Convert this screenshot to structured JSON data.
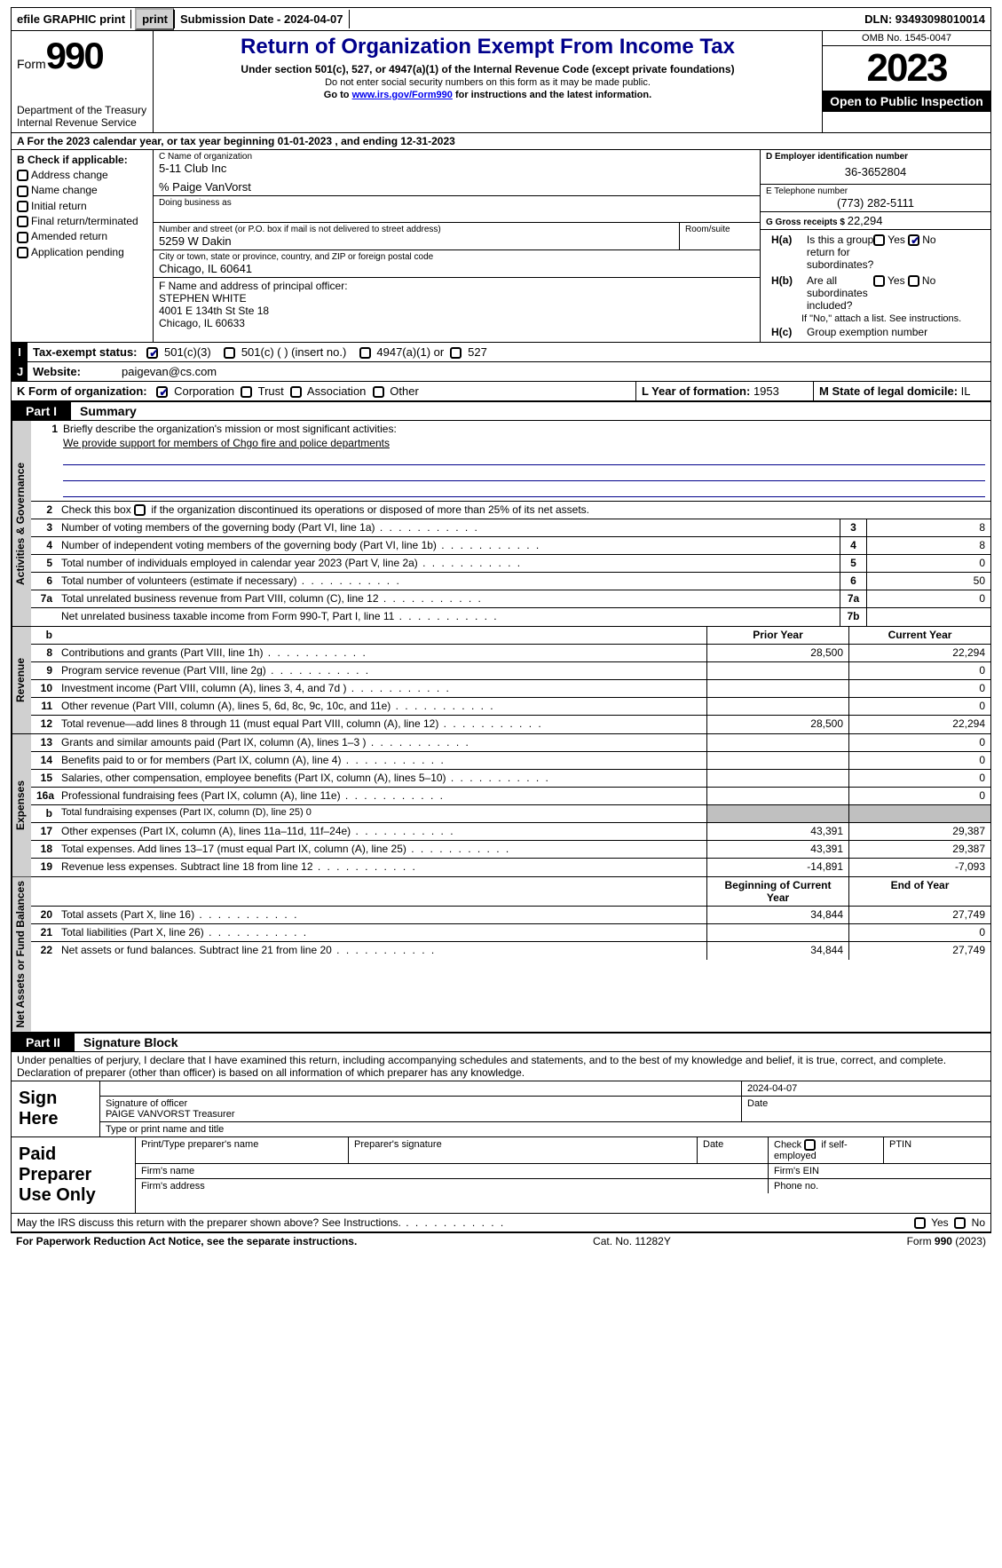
{
  "topbar": {
    "efile_label": "efile GRAPHIC print",
    "submission_label": "Submission Date - 2024-04-07",
    "dln_label": "DLN: 93493098010014"
  },
  "header": {
    "form_prefix": "Form",
    "form_number": "990",
    "dept": "Department of the Treasury Internal Revenue Service",
    "title": "Return of Organization Exempt From Income Tax",
    "sub1": "Under section 501(c), 527, or 4947(a)(1) of the Internal Revenue Code (except private foundations)",
    "sub2": "Do not enter social security numbers on this form as it may be made public.",
    "sub3_prefix": "Go to ",
    "sub3_link": "www.irs.gov/Form990",
    "sub3_suffix": " for instructions and the latest information.",
    "omb": "OMB No. 1545-0047",
    "year": "2023",
    "open_inspection": "Open to Public Inspection"
  },
  "period": {
    "label": "A For the 2023 calendar year, or tax year beginning ",
    "begin": "01-01-2023",
    "mid": " , and ending ",
    "end": "12-31-2023"
  },
  "box_b": {
    "title": "B Check if applicable:",
    "opts": [
      "Address change",
      "Name change",
      "Initial return",
      "Final return/terminated",
      "Amended return",
      "Application pending"
    ]
  },
  "box_c": {
    "name_label": "C Name of organization",
    "name": "5-11 Club Inc",
    "care_of": "% Paige VanVorst",
    "dba_label": "Doing business as",
    "street_label": "Number and street (or P.O. box if mail is not delivered to street address)",
    "street": "5259 W Dakin",
    "room_label": "Room/suite",
    "city_label": "City or town, state or province, country, and ZIP or foreign postal code",
    "city": "Chicago, IL  60641"
  },
  "box_d": {
    "label": "D Employer identification number",
    "value": "36-3652804"
  },
  "box_e": {
    "label": "E Telephone number",
    "value": "(773) 282-5111"
  },
  "box_g": {
    "label": "G Gross receipts $ ",
    "value": "22,294"
  },
  "box_f": {
    "label": "F  Name and address of principal officer:",
    "name": "STEPHEN WHITE",
    "addr1": "4001 E 134th St Ste 18",
    "addr2": "Chicago, IL  60633"
  },
  "box_h": {
    "a_label": "Is this a group return for subordinates?",
    "a_prefix": "H(a)",
    "b_label": "Are all subordinates included?",
    "b_prefix": "H(b)",
    "note": "If \"No,\" attach a list. See instructions.",
    "c_prefix": "H(c)",
    "c_label": "Group exemption number",
    "yes": "Yes",
    "no": "No"
  },
  "box_i": {
    "label": "Tax-exempt status:",
    "opt1": "501(c)(3)",
    "opt2": "501(c) (  ) (insert no.)",
    "opt3": "4947(a)(1) or",
    "opt4": "527"
  },
  "box_j": {
    "label": "Website:",
    "value": "paigevan@cs.com"
  },
  "box_k": {
    "label": "K Form of organization:",
    "opts": [
      "Corporation",
      "Trust",
      "Association",
      "Other"
    ]
  },
  "box_l": {
    "label": "L Year of formation: ",
    "value": "1953"
  },
  "box_m": {
    "label": "M State of legal domicile: ",
    "value": "IL"
  },
  "part1": {
    "tab": "Part I",
    "title": "Summary",
    "q1": "Briefly describe the organization's mission or most significant activities:",
    "mission": "We provide support for members of Chgo fire and police departments",
    "q2": "Check this box      if the organization discontinued its operations or disposed of more than 25% of its net assets.",
    "sections": {
      "gov": "Activities & Governance",
      "rev": "Revenue",
      "exp": "Expenses",
      "net": "Net Assets or Fund Balances"
    },
    "prior_hdr": "Prior Year",
    "curr_hdr": "Current Year",
    "begin_hdr": "Beginning of Current Year",
    "end_hdr": "End of Year",
    "rows_gov": [
      {
        "n": "3",
        "d": "Number of voting members of the governing body (Part VI, line 1a)",
        "box": "3",
        "v": "8"
      },
      {
        "n": "4",
        "d": "Number of independent voting members of the governing body (Part VI, line 1b)",
        "box": "4",
        "v": "8"
      },
      {
        "n": "5",
        "d": "Total number of individuals employed in calendar year 2023 (Part V, line 2a)",
        "box": "5",
        "v": "0"
      },
      {
        "n": "6",
        "d": "Total number of volunteers (estimate if necessary)",
        "box": "6",
        "v": "50"
      },
      {
        "n": "7a",
        "d": "Total unrelated business revenue from Part VIII, column (C), line 12",
        "box": "7a",
        "v": "0"
      },
      {
        "n": "",
        "d": "Net unrelated business taxable income from Form 990-T, Part I, line 11",
        "box": "7b",
        "v": ""
      }
    ],
    "rows_rev": [
      {
        "n": "8",
        "d": "Contributions and grants (Part VIII, line 1h)",
        "p": "28,500",
        "c": "22,294"
      },
      {
        "n": "9",
        "d": "Program service revenue (Part VIII, line 2g)",
        "p": "",
        "c": "0"
      },
      {
        "n": "10",
        "d": "Investment income (Part VIII, column (A), lines 3, 4, and 7d )",
        "p": "",
        "c": "0"
      },
      {
        "n": "11",
        "d": "Other revenue (Part VIII, column (A), lines 5, 6d, 8c, 9c, 10c, and 11e)",
        "p": "",
        "c": "0"
      },
      {
        "n": "12",
        "d": "Total revenue—add lines 8 through 11 (must equal Part VIII, column (A), line 12)",
        "p": "28,500",
        "c": "22,294"
      }
    ],
    "rows_exp": [
      {
        "n": "13",
        "d": "Grants and similar amounts paid (Part IX, column (A), lines 1–3 )",
        "p": "",
        "c": "0"
      },
      {
        "n": "14",
        "d": "Benefits paid to or for members (Part IX, column (A), line 4)",
        "p": "",
        "c": "0"
      },
      {
        "n": "15",
        "d": "Salaries, other compensation, employee benefits (Part IX, column (A), lines 5–10)",
        "p": "",
        "c": "0"
      },
      {
        "n": "16a",
        "d": "Professional fundraising fees (Part IX, column (A), line 11e)",
        "p": "",
        "c": "0"
      },
      {
        "n": "b",
        "d": "Total fundraising expenses (Part IX, column (D), line 25) 0",
        "grey": true
      },
      {
        "n": "17",
        "d": "Other expenses (Part IX, column (A), lines 11a–11d, 11f–24e)",
        "p": "43,391",
        "c": "29,387"
      },
      {
        "n": "18",
        "d": "Total expenses. Add lines 13–17 (must equal Part IX, column (A), line 25)",
        "p": "43,391",
        "c": "29,387"
      },
      {
        "n": "19",
        "d": "Revenue less expenses. Subtract line 18 from line 12",
        "p": "-14,891",
        "c": "-7,093"
      }
    ],
    "rows_net": [
      {
        "n": "20",
        "d": "Total assets (Part X, line 16)",
        "p": "34,844",
        "c": "27,749"
      },
      {
        "n": "21",
        "d": "Total liabilities (Part X, line 26)",
        "p": "",
        "c": "0"
      },
      {
        "n": "22",
        "d": "Net assets or fund balances. Subtract line 21 from line 20",
        "p": "34,844",
        "c": "27,749"
      }
    ]
  },
  "part2": {
    "tab": "Part II",
    "title": "Signature Block",
    "perjury": "Under penalties of perjury, I declare that I have examined this return, including accompanying schedules and statements, and to the best of my knowledge and belief, it is true, correct, and complete. Declaration of preparer (other than officer) is based on all information of which preparer has any knowledge.",
    "sign_here": "Sign Here",
    "date": "2024-04-07",
    "sig_officer_label": "Signature of officer",
    "officer_name": "PAIGE VANVORST Treasurer",
    "type_name_label": "Type or print name and title",
    "date_label": "Date",
    "paid_prep": "Paid Preparer Use Only",
    "prep_name_label": "Print/Type preparer's name",
    "prep_sig_label": "Preparer's signature",
    "prep_date_label": "Date",
    "prep_self_label": "Check       if self-employed",
    "ptin_label": "PTIN",
    "firm_name_label": "Firm's name",
    "firm_ein_label": "Firm's EIN",
    "firm_addr_label": "Firm's address",
    "phone_label": "Phone no.",
    "discuss": "May the IRS discuss this return with the preparer shown above? See Instructions."
  },
  "footer": {
    "pra": "For Paperwork Reduction Act Notice, see the separate instructions.",
    "cat": "Cat. No. 11282Y",
    "form": "Form 990 (2023)"
  }
}
